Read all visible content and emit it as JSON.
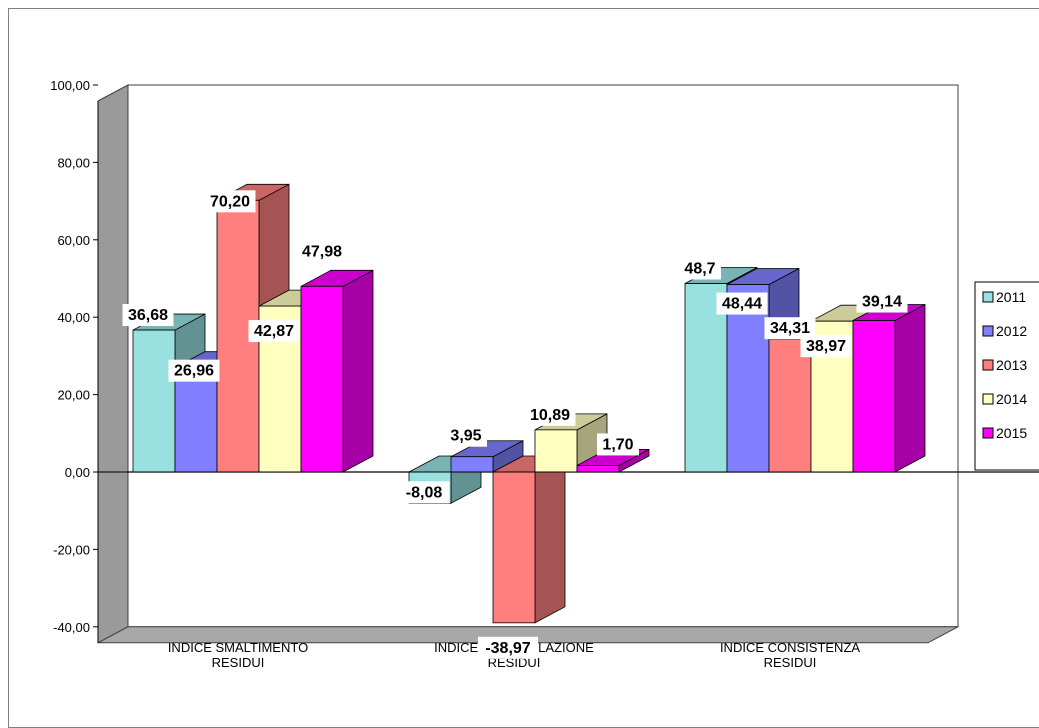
{
  "chart_data": {
    "type": "bar",
    "categories": [
      [
        "INDICE SMALTIMENTO",
        "RESIDUI"
      ],
      [
        "INDICE ACCUMULAZIONE",
        "RESIDUI"
      ],
      [
        "INDICE CONSISTENZA",
        "RESIDUI"
      ]
    ],
    "series": [
      {
        "name": "2011",
        "color": "#99E0E0",
        "values": [
          36.68,
          -8.08,
          48.7
        ],
        "labels": [
          "36,68",
          "-8,08",
          "48,7"
        ]
      },
      {
        "name": "2012",
        "color": "#7F7FFF",
        "values": [
          26.96,
          3.95,
          48.44
        ],
        "labels": [
          "26,96",
          "3,95",
          "48,44"
        ]
      },
      {
        "name": "2013",
        "color": "#FF7F7F",
        "values": [
          70.2,
          -38.97,
          34.31
        ],
        "labels": [
          "70,20",
          "-38,97",
          "34,31"
        ]
      },
      {
        "name": "2014",
        "color": "#FFFFC0",
        "values": [
          42.87,
          10.89,
          38.97
        ],
        "labels": [
          "42,87",
          "10,89",
          "38,97"
        ]
      },
      {
        "name": "2015",
        "color": "#FF00FF",
        "values": [
          47.98,
          1.7,
          39.14
        ],
        "labels": [
          "47,98",
          "1,70",
          "39,14"
        ]
      }
    ],
    "yticks": [
      "100,00",
      "80,00",
      "60,00",
      "40,00",
      "20,00",
      "0,00",
      "-20,00",
      "-40,00"
    ],
    "ytick_values": [
      100,
      80,
      60,
      40,
      20,
      0,
      -20,
      -40
    ],
    "ylim": [
      -40,
      100
    ],
    "title": "",
    "xlabel": "",
    "ylabel": "",
    "legend_position": "right",
    "grid": false,
    "three_d": true
  }
}
